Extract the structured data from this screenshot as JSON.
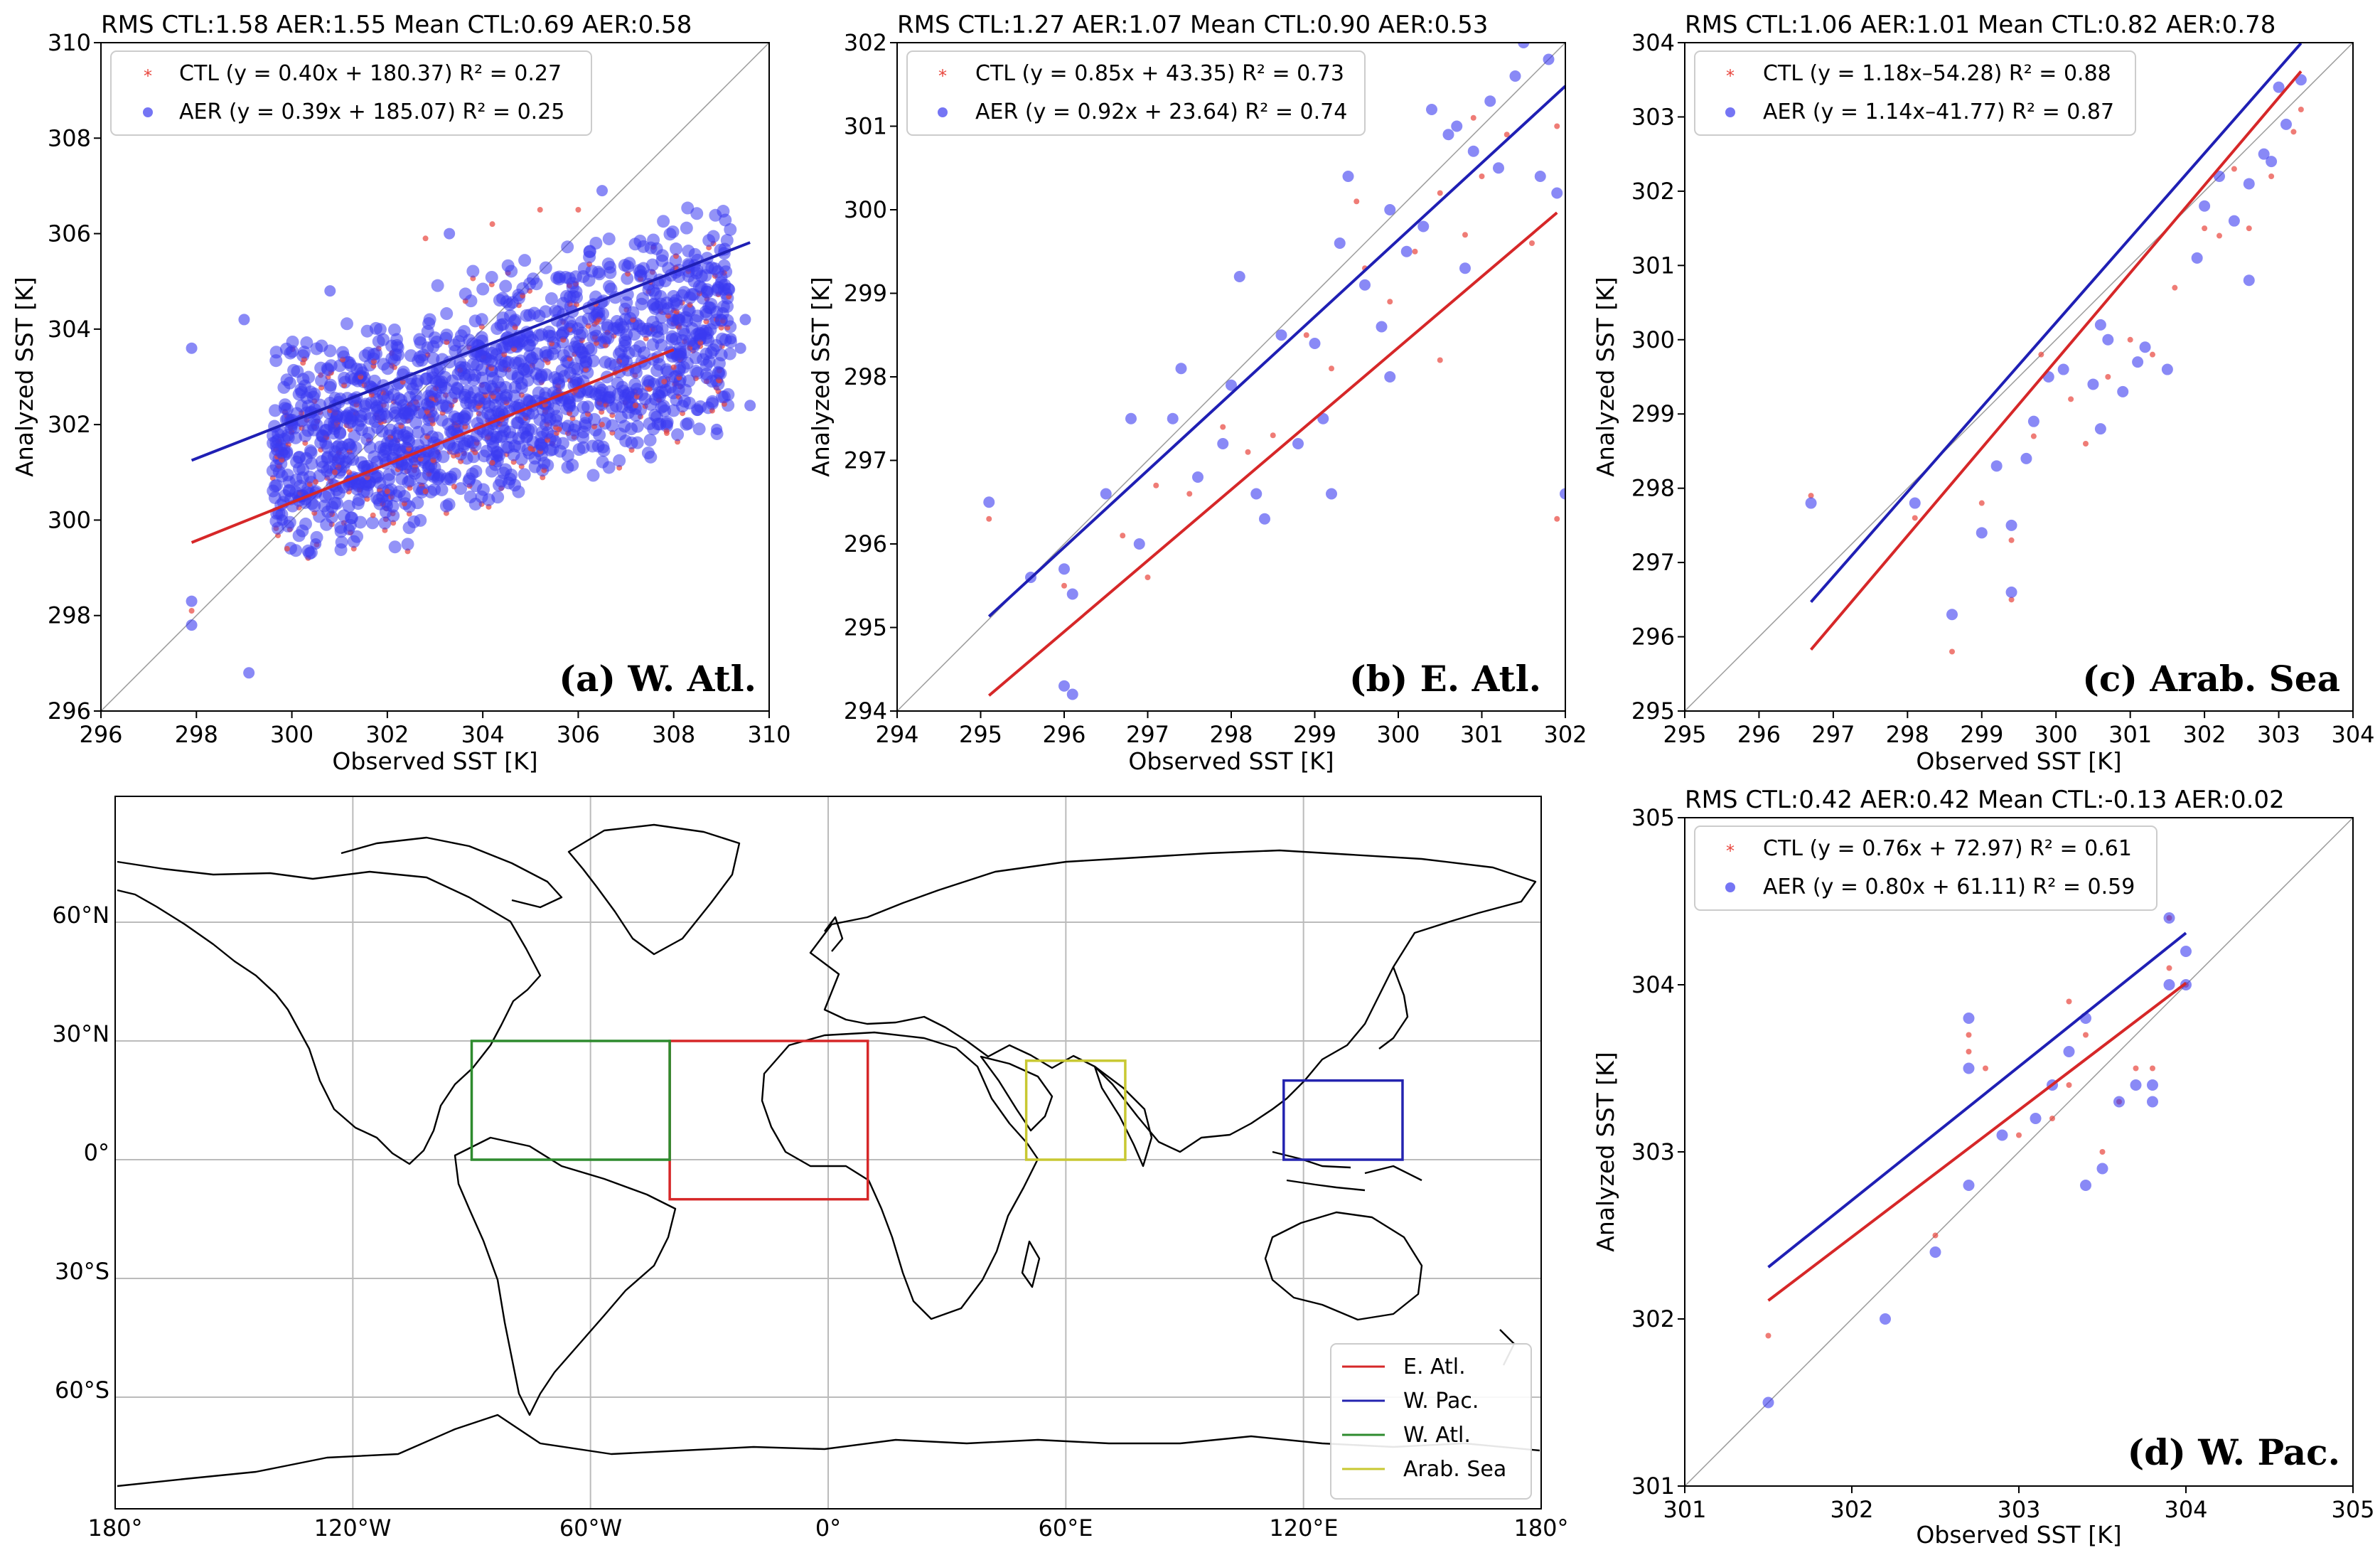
{
  "panels": [
    {
      "title": "RMS CTL:1.58 AER:1.55 Mean CTL:0.69 AER:0.58",
      "label": "(a) W. Atl.",
      "xlabel": "Observed SST [K]",
      "ylabel": "Analyzed SST [K]",
      "legend": [
        "CTL (y = 0.40x + 180.37) R² =  0.27",
        "AER (y = 0.39x + 185.07) R² =  0.25"
      ]
    },
    {
      "title": "RMS CTL:1.27 AER:1.07 Mean CTL:0.90 AER:0.53",
      "label": "(b) E. Atl.",
      "xlabel": "Observed SST [K]",
      "ylabel": "Analyzed SST [K]",
      "legend": [
        "CTL (y = 0.85x + 43.35) R² =  0.73",
        "AER (y = 0.92x + 23.64) R² =  0.74"
      ]
    },
    {
      "title": "RMS CTL:1.06 AER:1.01 Mean CTL:0.82 AER:0.78",
      "label": "(c) Arab. Sea",
      "xlabel": "Observed SST [K]",
      "ylabel": "Analyzed SST [K]",
      "legend": [
        "CTL (y = 1.18x–54.28) R² =  0.88",
        "AER (y = 1.14x–41.77) R² =  0.87"
      ]
    },
    {
      "title": "RMS CTL:0.42 AER:0.42 Mean CTL:-0.13 AER:0.02",
      "label": "(d) W. Pac.",
      "xlabel": "Observed SST [K]",
      "ylabel": "Analyzed SST [K]",
      "legend": [
        "CTL (y = 0.76x + 72.97) R² =  0.61",
        "AER (y = 0.80x + 61.11) R² =  0.59"
      ]
    }
  ],
  "map": {
    "lon_ticks": [
      "180°",
      "120°W",
      "60°W",
      "0°",
      "60°E",
      "120°E",
      "180°"
    ],
    "lat_ticks": [
      "60°N",
      "30°N",
      "0°",
      "30°S",
      "60°S"
    ],
    "legend": [
      "E. Atl.",
      "W. Pac.",
      "W. Atl.",
      "Arab. Sea"
    ]
  },
  "colors": {
    "ctl": "#e8453c",
    "aer": "#3a3af0",
    "ctl_line": "#d62728",
    "aer_line": "#1f1fb4",
    "wpac": "#2424b0",
    "watl": "#2e8b2e",
    "arab": "#c8c832"
  },
  "chart_data": [
    {
      "type": "scatter",
      "title": "RMS CTL:1.58 AER:1.55 Mean CTL:0.69 AER:0.58",
      "xlabel": "Observed SST [K]",
      "ylabel": "Analyzed SST [K]",
      "xlim": [
        296,
        310
      ],
      "ylim": [
        296,
        310
      ],
      "xticks": [
        296,
        298,
        300,
        302,
        304,
        306,
        308,
        310
      ],
      "yticks": [
        296,
        298,
        300,
        302,
        304,
        306,
        308,
        310
      ],
      "series": [
        {
          "name": "CTL",
          "fit": [
            0.4,
            180.37
          ],
          "r2": 0.27,
          "points": [
            [
              297.9,
              298.1
            ],
            [
              299.9,
              299.4
            ],
            [
              300.5,
              300.8
            ],
            [
              301.2,
              301.0
            ],
            [
              302.0,
              300.6
            ],
            [
              302.8,
              300.6
            ],
            [
              303.4,
              300.7
            ],
            [
              304.2,
              301.2
            ],
            [
              305.0,
              301.5
            ],
            [
              305.6,
              301.9
            ],
            [
              306.5,
              302.0
            ],
            [
              307.2,
              302.4
            ],
            [
              308.0,
              303.2
            ],
            [
              306.0,
              306.5
            ],
            [
              305.2,
              306.5
            ],
            [
              304.2,
              306.2
            ],
            [
              302.8,
              305.9
            ],
            [
              300.9,
              301.0
            ],
            [
              301.7,
              300.1
            ],
            [
              307.8,
              302.9
            ]
          ]
        },
        {
          "name": "AER",
          "fit": [
            0.39,
            185.07
          ],
          "r2": 0.25,
          "points": [
            [
              297.9,
              303.6
            ],
            [
              297.9,
              298.3
            ],
            [
              297.9,
              297.8
            ],
            [
              299.1,
              296.8
            ],
            [
              299.0,
              304.2
            ],
            [
              299.8,
              300.0
            ],
            [
              300.5,
              299.5
            ],
            [
              309.2,
              303.8
            ],
            [
              309.5,
              304.2
            ],
            [
              308.9,
              301.9
            ],
            [
              309.6,
              302.4
            ],
            [
              309.4,
              303.6
            ],
            [
              306.5,
              306.9
            ],
            [
              303.3,
              306.0
            ],
            [
              300.8,
              304.8
            ],
            [
              308.5,
              302.3
            ],
            [
              302.0,
              300.3
            ],
            [
              301.2,
              299.8
            ]
          ]
        }
      ]
    },
    {
      "type": "scatter",
      "title": "RMS CTL:1.27 AER:1.07 Mean CTL:0.90 AER:0.53",
      "xlabel": "Observed SST [K]",
      "ylabel": "Analyzed SST [K]",
      "xlim": [
        294,
        302
      ],
      "ylim": [
        294,
        302
      ],
      "xticks": [
        294,
        295,
        296,
        297,
        298,
        299,
        300,
        301,
        302
      ],
      "yticks": [
        294,
        295,
        296,
        297,
        298,
        299,
        300,
        301,
        302
      ],
      "series": [
        {
          "name": "CTL",
          "fit": [
            0.85,
            43.35
          ],
          "r2": 0.73,
          "points": [
            [
              295.1,
              296.3
            ],
            [
              296.0,
              295.5
            ],
            [
              296.7,
              296.1
            ],
            [
              297.1,
              296.7
            ],
            [
              297.5,
              296.6
            ],
            [
              297.9,
              297.4
            ],
            [
              298.2,
              297.1
            ],
            [
              298.5,
              297.3
            ],
            [
              298.9,
              298.5
            ],
            [
              299.2,
              298.1
            ],
            [
              299.6,
              299.3
            ],
            [
              299.9,
              298.9
            ],
            [
              300.2,
              299.5
            ],
            [
              300.5,
              300.2
            ],
            [
              300.8,
              299.7
            ],
            [
              301.0,
              300.4
            ],
            [
              301.3,
              300.9
            ],
            [
              301.6,
              299.6
            ],
            [
              301.9,
              301.0
            ],
            [
              301.9,
              296.3
            ],
            [
              300.5,
              298.2
            ],
            [
              297.0,
              295.6
            ],
            [
              299.5,
              300.1
            ],
            [
              300.9,
              301.1
            ]
          ]
        },
        {
          "name": "AER",
          "fit": [
            0.92,
            23.64
          ],
          "r2": 0.74,
          "points": [
            [
              295.1,
              296.5
            ],
            [
              295.6,
              295.6
            ],
            [
              296.0,
              295.7
            ],
            [
              296.0,
              294.3
            ],
            [
              296.1,
              294.2
            ],
            [
              296.1,
              295.4
            ],
            [
              296.5,
              296.6
            ],
            [
              296.8,
              297.5
            ],
            [
              296.9,
              296.0
            ],
            [
              297.3,
              297.5
            ],
            [
              297.4,
              298.1
            ],
            [
              297.6,
              296.8
            ],
            [
              297.9,
              297.2
            ],
            [
              298.0,
              297.9
            ],
            [
              298.1,
              299.2
            ],
            [
              298.3,
              296.6
            ],
            [
              298.4,
              296.3
            ],
            [
              298.6,
              298.5
            ],
            [
              298.8,
              297.2
            ],
            [
              299.0,
              298.4
            ],
            [
              299.1,
              297.5
            ],
            [
              299.2,
              296.6
            ],
            [
              299.3,
              299.6
            ],
            [
              299.4,
              300.4
            ],
            [
              299.6,
              299.1
            ],
            [
              299.8,
              298.6
            ],
            [
              299.9,
              300.0
            ],
            [
              300.1,
              299.5
            ],
            [
              300.3,
              299.8
            ],
            [
              300.4,
              301.2
            ],
            [
              300.6,
              300.9
            ],
            [
              300.7,
              301.0
            ],
            [
              300.9,
              300.7
            ],
            [
              301.1,
              301.3
            ],
            [
              301.2,
              300.5
            ],
            [
              301.4,
              301.6
            ],
            [
              301.5,
              302.0
            ],
            [
              301.7,
              300.4
            ],
            [
              301.8,
              301.8
            ],
            [
              301.9,
              300.2
            ],
            [
              302.0,
              296.6
            ],
            [
              299.9,
              298.0
            ],
            [
              300.8,
              299.3
            ]
          ]
        }
      ]
    },
    {
      "type": "scatter",
      "title": "RMS CTL:1.06 AER:1.01 Mean CTL:0.82 AER:0.78",
      "xlabel": "Observed SST [K]",
      "ylabel": "Analyzed SST [K]",
      "xlim": [
        295,
        304
      ],
      "ylim": [
        295,
        304
      ],
      "xticks": [
        295,
        296,
        297,
        298,
        299,
        300,
        301,
        302,
        303,
        304
      ],
      "yticks": [
        295,
        296,
        297,
        298,
        299,
        300,
        301,
        302,
        303,
        304
      ],
      "series": [
        {
          "name": "CTL",
          "fit": [
            1.18,
            -54.28
          ],
          "r2": 0.88,
          "points": [
            [
              296.7,
              297.9
            ],
            [
              298.1,
              297.6
            ],
            [
              298.6,
              295.8
            ],
            [
              299.0,
              297.8
            ],
            [
              299.4,
              296.5
            ],
            [
              299.4,
              297.3
            ],
            [
              299.7,
              298.7
            ],
            [
              299.8,
              299.8
            ],
            [
              300.2,
              299.2
            ],
            [
              300.4,
              298.6
            ],
            [
              300.7,
              299.5
            ],
            [
              301.0,
              300.0
            ],
            [
              301.3,
              299.8
            ],
            [
              301.6,
              300.7
            ],
            [
              302.0,
              301.5
            ],
            [
              302.2,
              301.4
            ],
            [
              302.4,
              302.3
            ],
            [
              302.6,
              301.5
            ],
            [
              302.9,
              302.2
            ],
            [
              303.2,
              302.8
            ],
            [
              303.3,
              303.1
            ]
          ]
        },
        {
          "name": "AER",
          "fit": [
            1.14,
            -41.77
          ],
          "r2": 0.87,
          "points": [
            [
              296.7,
              297.8
            ],
            [
              298.1,
              297.8
            ],
            [
              298.6,
              296.3
            ],
            [
              299.0,
              297.4
            ],
            [
              299.2,
              298.3
            ],
            [
              299.4,
              297.5
            ],
            [
              299.4,
              296.6
            ],
            [
              299.6,
              298.4
            ],
            [
              299.7,
              298.9
            ],
            [
              299.9,
              299.5
            ],
            [
              300.1,
              299.6
            ],
            [
              300.5,
              299.4
            ],
            [
              300.6,
              298.8
            ],
            [
              300.7,
              300.0
            ],
            [
              300.9,
              299.3
            ],
            [
              301.1,
              299.7
            ],
            [
              301.2,
              299.9
            ],
            [
              301.5,
              299.6
            ],
            [
              301.9,
              301.1
            ],
            [
              302.0,
              301.8
            ],
            [
              302.2,
              302.2
            ],
            [
              302.4,
              301.6
            ],
            [
              302.6,
              300.8
            ],
            [
              302.6,
              302.1
            ],
            [
              302.8,
              302.5
            ],
            [
              303.0,
              303.4
            ],
            [
              303.1,
              302.9
            ],
            [
              303.3,
              303.5
            ],
            [
              300.6,
              300.2
            ],
            [
              302.9,
              302.4
            ]
          ]
        }
      ]
    },
    {
      "type": "scatter",
      "title": "RMS CTL:0.42 AER:0.42 Mean CTL:-0.13 AER:0.02",
      "xlabel": "Observed SST [K]",
      "ylabel": "Analyzed SST [K]",
      "xlim": [
        301,
        305
      ],
      "ylim": [
        301,
        305
      ],
      "xticks": [
        301,
        302,
        303,
        304,
        305
      ],
      "yticks": [
        301,
        302,
        303,
        304,
        305
      ],
      "series": [
        {
          "name": "CTL",
          "fit": [
            0.76,
            72.97
          ],
          "r2": 0.61,
          "points": [
            [
              301.5,
              301.9
            ],
            [
              302.5,
              302.5
            ],
            [
              302.7,
              303.7
            ],
            [
              302.7,
              303.6
            ],
            [
              302.8,
              303.5
            ],
            [
              303.0,
              303.1
            ],
            [
              303.2,
              303.2
            ],
            [
              303.3,
              303.4
            ],
            [
              303.3,
              303.9
            ],
            [
              303.4,
              303.7
            ],
            [
              303.5,
              303.0
            ],
            [
              303.6,
              303.3
            ],
            [
              303.7,
              303.5
            ],
            [
              303.8,
              303.5
            ],
            [
              303.9,
              304.4
            ],
            [
              303.9,
              304.1
            ],
            [
              304.0,
              304.0
            ]
          ]
        },
        {
          "name": "AER",
          "fit": [
            0.8,
            61.11
          ],
          "r2": 0.59,
          "points": [
            [
              301.5,
              301.5
            ],
            [
              302.2,
              302.0
            ],
            [
              302.5,
              302.4
            ],
            [
              302.7,
              303.8
            ],
            [
              302.7,
              303.5
            ],
            [
              302.7,
              302.8
            ],
            [
              302.9,
              303.1
            ],
            [
              303.1,
              303.2
            ],
            [
              303.2,
              303.4
            ],
            [
              303.3,
              303.6
            ],
            [
              303.4,
              303.8
            ],
            [
              303.4,
              302.8
            ],
            [
              303.5,
              302.9
            ],
            [
              303.6,
              303.3
            ],
            [
              303.7,
              303.4
            ],
            [
              303.8,
              303.3
            ],
            [
              303.8,
              303.4
            ],
            [
              303.9,
              304.4
            ],
            [
              303.9,
              304.0
            ],
            [
              304.0,
              304.2
            ],
            [
              304.0,
              304.0
            ]
          ]
        }
      ]
    },
    {
      "type": "map",
      "lon_ticks": [
        "180°",
        "120°W",
        "60°W",
        "0°",
        "60°E",
        "120°E",
        "180°"
      ],
      "lat_ticks": [
        "60°N",
        "30°N",
        "0°",
        "30°S",
        "60°S"
      ],
      "regions": [
        {
          "name": "E. Atl.",
          "lon": [
            -40,
            10
          ],
          "lat": [
            -10,
            30
          ]
        },
        {
          "name": "W. Pac.",
          "lon": [
            115,
            145
          ],
          "lat": [
            0,
            20
          ]
        },
        {
          "name": "W. Atl.",
          "lon": [
            -90,
            -40
          ],
          "lat": [
            0,
            30
          ]
        },
        {
          "name": "Arab. Sea",
          "lon": [
            50,
            75
          ],
          "lat": [
            0,
            25
          ]
        }
      ]
    }
  ]
}
